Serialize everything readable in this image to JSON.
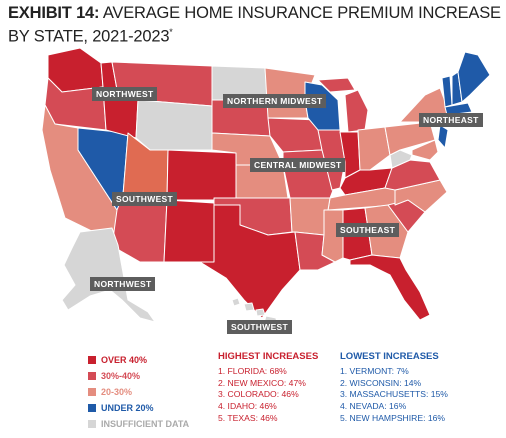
{
  "title": {
    "exhibit": "EXHIBIT 14:",
    "text": "AVERAGE HOME INSURANCE PREMIUM INCREASE BY STATE, 2021-2023",
    "footnote_mark": "*"
  },
  "colors": {
    "over40": "#c8202e",
    "r30_40": "#d44b55",
    "r20_30": "#e48d7f",
    "mid_orange": "#e06b52",
    "under20": "#1f5aa8",
    "insufficient": "#d6d6d6",
    "label_bg": "#5d5d5d",
    "highest_head": "#c8202e",
    "lowest_head": "#1f5aa8"
  },
  "regions": {
    "northwest": "NORTHWEST",
    "northern_midwest": "NORTHERN MIDWEST",
    "northeast": "NORTHEAST",
    "southwest": "SOUTHWEST",
    "central_midwest": "CENTRAL MIDWEST",
    "southeast": "SOUTHEAST",
    "northwest_alaska": "NORTHWEST",
    "southwest_hawaii": "SOUTHWEST"
  },
  "legend": [
    {
      "label": "OVER 40%",
      "color": "#c8202e",
      "text_color": "#c8202e"
    },
    {
      "label": "30%-40%",
      "color": "#d44b55",
      "text_color": "#d44b55"
    },
    {
      "label": "20-30%",
      "color": "#e48d7f",
      "text_color": "#e48d7f"
    },
    {
      "label": "UNDER 20%",
      "color": "#1f5aa8",
      "text_color": "#1f5aa8"
    },
    {
      "label": "INSUFFICIENT DATA",
      "color": "#d6d6d6",
      "text_color": "#aaaaaa"
    }
  ],
  "highest": {
    "heading": "HIGHEST INCREASES",
    "items": [
      "1. FLORIDA: 68%",
      "2. NEW MEXICO: 47%",
      "3. COLORADO: 46%",
      "4. IDAHO: 46%",
      "5. TEXAS: 46%"
    ]
  },
  "lowest": {
    "heading": "LOWEST INCREASES",
    "items": [
      "1. VERMONT: 7%",
      "2. WISCONSIN: 14%",
      "3. MASSACHUSETTS: 15%",
      "4. NEVADA: 16%",
      "5. NEW HAMPSHIRE: 16%"
    ]
  }
}
